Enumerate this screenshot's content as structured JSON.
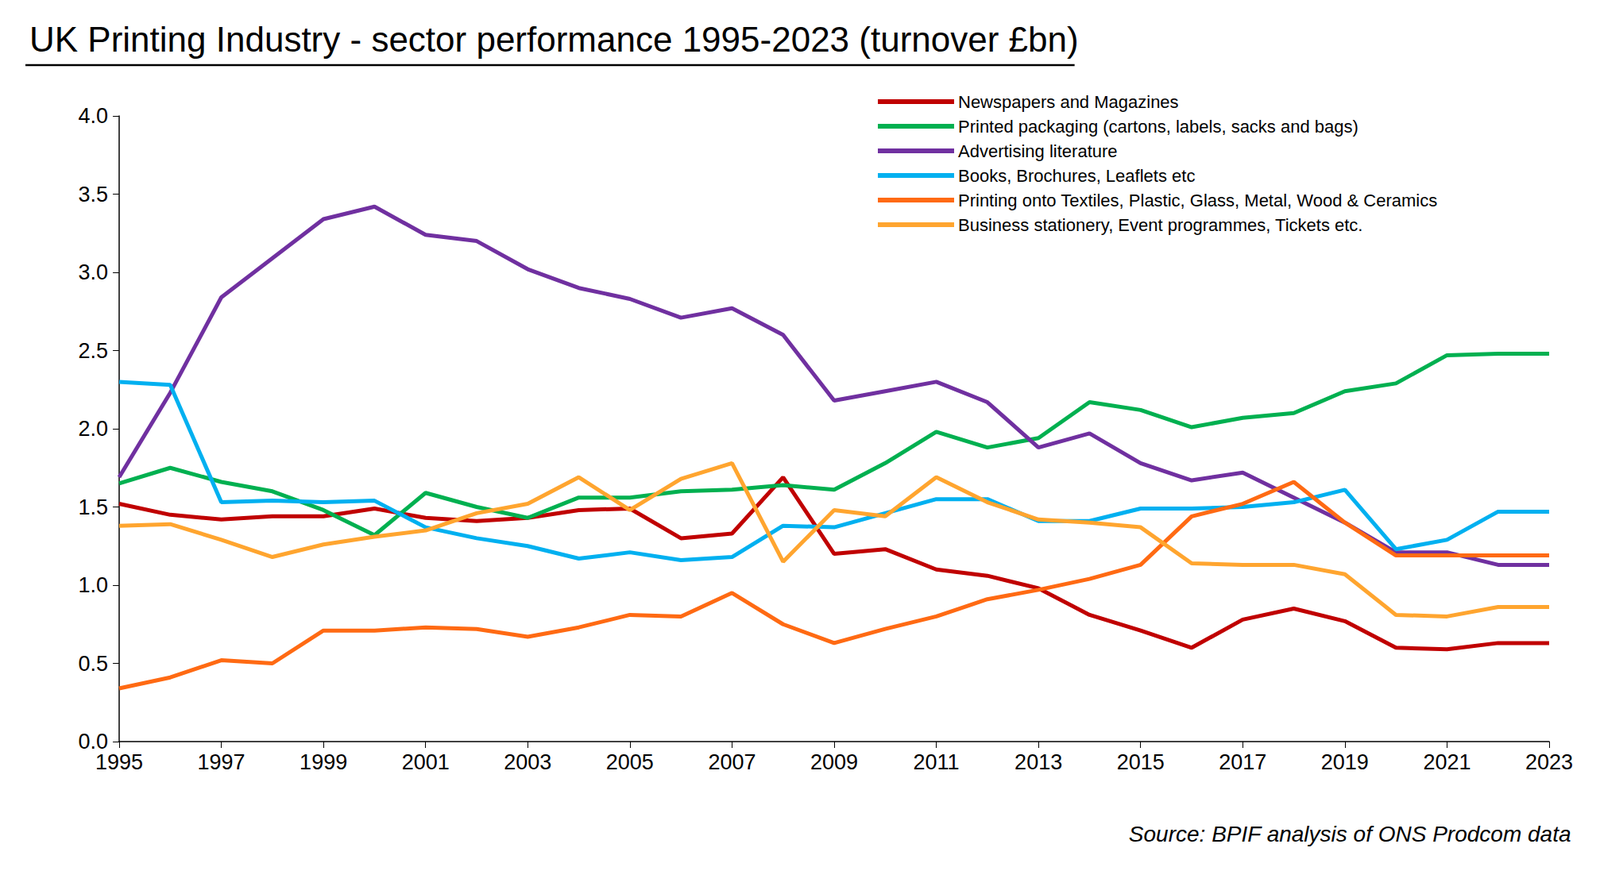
{
  "chart_data": {
    "type": "line",
    "title": "UK Printing Industry - sector performance 1995-2023 (turnover £bn)",
    "annotation": "Source: BPIF analysis of ONS Prodcom data",
    "x": [
      1995,
      1996,
      1997,
      1998,
      1999,
      2000,
      2001,
      2002,
      2003,
      2004,
      2005,
      2006,
      2007,
      2008,
      2009,
      2010,
      2011,
      2012,
      2013,
      2014,
      2015,
      2016,
      2017,
      2018,
      2019,
      2020,
      2021,
      2022,
      2023
    ],
    "series": [
      {
        "name": "Newspapers and Magazines",
        "color": "#C00000",
        "line_style": "solid",
        "values": [
          1.52,
          1.45,
          1.42,
          1.44,
          1.44,
          1.49,
          1.43,
          1.41,
          1.43,
          1.48,
          1.49,
          1.3,
          1.33,
          1.69,
          1.2,
          1.23,
          1.1,
          1.06,
          0.98,
          0.81,
          0.71,
          0.6,
          0.78,
          0.85,
          0.77,
          0.6,
          0.59,
          0.63,
          0.63
        ]
      },
      {
        "name": "Printed packaging (cartons, labels, sacks and bags)",
        "color": "#00B050",
        "line_style": "solid",
        "values": [
          1.65,
          1.75,
          1.66,
          1.6,
          1.48,
          1.32,
          1.59,
          1.5,
          1.43,
          1.56,
          1.56,
          1.6,
          1.61,
          1.64,
          1.61,
          1.78,
          1.98,
          1.88,
          1.94,
          2.17,
          2.12,
          2.01,
          2.07,
          2.1,
          2.24,
          2.29,
          2.47,
          2.48,
          2.48
        ]
      },
      {
        "name": "Advertising literature",
        "color": "#7030A0",
        "line_style": "solid",
        "values": [
          1.69,
          2.23,
          2.84,
          3.09,
          3.34,
          3.42,
          3.24,
          3.2,
          3.02,
          2.9,
          2.83,
          2.71,
          2.77,
          2.6,
          2.18,
          2.24,
          2.3,
          2.17,
          1.88,
          1.97,
          1.78,
          1.67,
          1.72,
          1.56,
          1.4,
          1.21,
          1.21,
          1.13,
          1.13
        ]
      },
      {
        "name": "Books, Brochures, Leaflets etc",
        "color": "#00B0F0",
        "line_style": "solid",
        "values": [
          2.3,
          2.28,
          1.53,
          1.54,
          1.53,
          1.54,
          1.37,
          1.3,
          1.25,
          1.17,
          1.21,
          1.16,
          1.18,
          1.38,
          1.37,
          1.46,
          1.55,
          1.55,
          1.41,
          1.41,
          1.49,
          1.49,
          1.5,
          1.53,
          1.61,
          1.23,
          1.29,
          1.47,
          1.47
        ]
      },
      {
        "name": "Printing onto Textiles, Plastic, Glass, Metal, Wood & Ceramics",
        "color": "#FF6A13",
        "line_style": "solid",
        "values": [
          0.34,
          0.41,
          0.52,
          0.5,
          0.71,
          0.71,
          0.73,
          0.72,
          0.67,
          0.73,
          0.81,
          0.8,
          0.95,
          0.75,
          0.63,
          0.72,
          0.8,
          0.91,
          0.97,
          1.04,
          1.13,
          1.44,
          1.52,
          1.66,
          1.4,
          1.19,
          1.19,
          1.19,
          1.19
        ]
      },
      {
        "name": "Business stationery, Event programmes, Tickets etc.",
        "color": "#FFA52F",
        "line_style": "solid",
        "values": [
          1.38,
          1.39,
          1.29,
          1.18,
          1.26,
          1.31,
          1.35,
          1.46,
          1.52,
          1.69,
          1.48,
          1.68,
          1.78,
          1.15,
          1.48,
          1.44,
          1.69,
          1.53,
          1.42,
          1.4,
          1.37,
          1.14,
          1.13,
          1.13,
          1.07,
          0.81,
          0.8,
          0.86,
          0.86
        ]
      }
    ],
    "xlim": [
      1995,
      2023
    ],
    "xticks": [
      1995,
      1997,
      1999,
      2001,
      2003,
      2005,
      2007,
      2009,
      2011,
      2013,
      2015,
      2017,
      2019,
      2021,
      2023
    ],
    "ylim": [
      0,
      4
    ],
    "yticks": [
      {
        "value": 0,
        "label": "0.0"
      },
      0.5,
      {
        "value": 1,
        "label": "1.0"
      },
      1.5,
      {
        "value": 2,
        "label": "2.0"
      },
      2.5,
      {
        "value": 3,
        "label": "3.0"
      },
      3.5,
      {
        "value": 4,
        "label": "4.0"
      }
    ],
    "grid": false,
    "legend": "upper right"
  }
}
